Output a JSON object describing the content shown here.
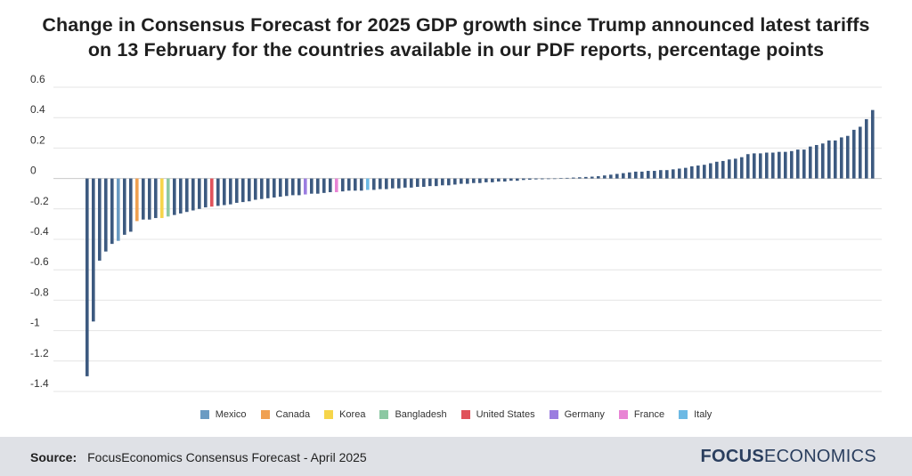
{
  "title_lines": [
    "Change in Consensus Forecast for 2025 GDP growth since Trump announced latest tariffs",
    "on 13 February for the countries available in our PDF reports, percentage points"
  ],
  "source_label": "Source:",
  "source_text": "FocusEconomics Consensus Forecast - April 2025",
  "brand": {
    "part1": "FOCUS",
    "part2": "ECONOMICS"
  },
  "colors": {
    "default_bar": "#3d5a80",
    "Mexico": "#6a9bc3",
    "Canada": "#f0a050",
    "Korea": "#f6d54a",
    "Bangladesh": "#8cc8a3",
    "United States": "#e0525a",
    "Germany": "#9b7de0",
    "France": "#e884d4",
    "Italy": "#6cb9e4"
  },
  "legend": [
    {
      "label": "Mexico",
      "color": "#6a9bc3"
    },
    {
      "label": "Canada",
      "color": "#f0a050"
    },
    {
      "label": "Korea",
      "color": "#f6d54a"
    },
    {
      "label": "Bangladesh",
      "color": "#8cc8a3"
    },
    {
      "label": "United States",
      "color": "#e0525a"
    },
    {
      "label": "Germany",
      "color": "#9b7de0"
    },
    {
      "label": "France",
      "color": "#e884d4"
    },
    {
      "label": "Italy",
      "color": "#6cb9e4"
    }
  ],
  "chart_data": {
    "type": "bar",
    "title": "Change in Consensus Forecast for 2025 GDP growth since Trump announced latest tariffs on 13 February for the countries available in our PDF reports, percentage points",
    "xlabel": "",
    "ylabel": "",
    "ylim": [
      -1.4,
      0.6
    ],
    "yticks": [
      0.6,
      0.4,
      0.2,
      0,
      -0.2,
      -0.4,
      -0.6,
      -0.8,
      -1,
      -1.2,
      -1.4
    ],
    "ytick_labels": [
      "0.6",
      "0.4",
      "0.2",
      "0",
      "-0.2",
      "-0.4",
      "-0.6",
      "-0.8",
      "-1",
      "-1.2",
      "-1.4"
    ],
    "grid": true,
    "values": [
      -1.3,
      -0.94,
      -0.54,
      -0.48,
      -0.43,
      -0.41,
      -0.37,
      -0.35,
      -0.28,
      -0.27,
      -0.27,
      -0.26,
      -0.26,
      -0.25,
      -0.24,
      -0.23,
      -0.22,
      -0.21,
      -0.2,
      -0.19,
      -0.185,
      -0.18,
      -0.175,
      -0.17,
      -0.16,
      -0.155,
      -0.15,
      -0.14,
      -0.135,
      -0.13,
      -0.125,
      -0.12,
      -0.115,
      -0.11,
      -0.11,
      -0.105,
      -0.1,
      -0.1,
      -0.095,
      -0.09,
      -0.09,
      -0.085,
      -0.08,
      -0.08,
      -0.08,
      -0.075,
      -0.075,
      -0.07,
      -0.07,
      -0.065,
      -0.065,
      -0.06,
      -0.06,
      -0.055,
      -0.055,
      -0.05,
      -0.05,
      -0.045,
      -0.045,
      -0.04,
      -0.035,
      -0.035,
      -0.03,
      -0.03,
      -0.025,
      -0.025,
      -0.02,
      -0.02,
      -0.015,
      -0.015,
      -0.01,
      -0.008,
      -0.006,
      -0.005,
      -0.004,
      -0.002,
      0.002,
      0.004,
      0.006,
      0.008,
      0.01,
      0.012,
      0.015,
      0.02,
      0.025,
      0.03,
      0.035,
      0.04,
      0.045,
      0.045,
      0.05,
      0.05,
      0.055,
      0.055,
      0.06,
      0.065,
      0.07,
      0.08,
      0.085,
      0.09,
      0.1,
      0.11,
      0.115,
      0.125,
      0.13,
      0.14,
      0.16,
      0.165,
      0.165,
      0.17,
      0.17,
      0.175,
      0.175,
      0.18,
      0.19,
      0.19,
      0.21,
      0.22,
      0.23,
      0.25,
      0.25,
      0.27,
      0.28,
      0.32,
      0.34,
      0.39,
      0.45
    ],
    "highlights": [
      {
        "index": 5,
        "country": "Mexico"
      },
      {
        "index": 8,
        "country": "Canada"
      },
      {
        "index": 12,
        "country": "Korea"
      },
      {
        "index": 13,
        "country": "Bangladesh"
      },
      {
        "index": 20,
        "country": "United States"
      },
      {
        "index": 35,
        "country": "Germany"
      },
      {
        "index": 40,
        "country": "France"
      },
      {
        "index": 45,
        "country": "Italy"
      }
    ],
    "legend_entries": [
      "Mexico",
      "Canada",
      "Korea",
      "Bangladesh",
      "United States",
      "Germany",
      "France",
      "Italy"
    ],
    "legend_position": "bottom"
  }
}
